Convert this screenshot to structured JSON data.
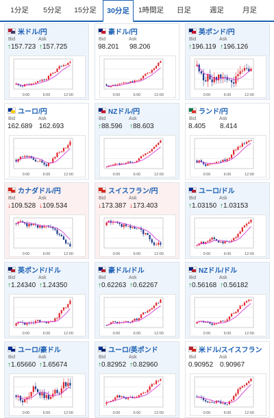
{
  "tabs": [
    "1分足",
    "5分足",
    "15分足",
    "30分足",
    "1時間足",
    "日足",
    "週足",
    "月足"
  ],
  "active_tab": 3,
  "cards": [
    {
      "pair": "米ドル/円",
      "state": "up",
      "bid": "157.723",
      "ask": "157.725",
      "bid_dir": "up",
      "ask_dir": "up",
      "flag": [
        "#b22234",
        "#3c3b6e"
      ]
    },
    {
      "pair": "豪ドル/円",
      "state": "neutral",
      "bid": "98.201",
      "ask": "98.206",
      "bid_dir": "",
      "ask_dir": "",
      "flag": [
        "#00247d",
        "#cf142b"
      ]
    },
    {
      "pair": "英ポンド/円",
      "state": "up",
      "bid": "196.119",
      "ask": "196.126",
      "bid_dir": "up",
      "ask_dir": "up",
      "flag": [
        "#012169",
        "#c8102e"
      ]
    },
    {
      "pair": "ユーロ/円",
      "state": "neutral",
      "bid": "162.689",
      "ask": "162.693",
      "bid_dir": "",
      "ask_dir": "",
      "flag": [
        "#003399",
        "#ffcc00"
      ]
    },
    {
      "pair": "NZドル/円",
      "state": "up",
      "bid": "88.596",
      "ask": "88.603",
      "bid_dir": "up",
      "ask_dir": "up",
      "flag": [
        "#00247d",
        "#cc142b"
      ]
    },
    {
      "pair": "ランド/円",
      "state": "neutral",
      "bid": "8.405",
      "ask": "8.414",
      "bid_dir": "",
      "ask_dir": "",
      "flag": [
        "#007a4d",
        "#de3831"
      ]
    },
    {
      "pair": "カナダドル/円",
      "state": "down",
      "bid": "109.528",
      "ask": "109.534",
      "bid_dir": "down",
      "ask_dir": "down",
      "flag": [
        "#d52b1e",
        "#d52b1e"
      ]
    },
    {
      "pair": "スイスフラン/円",
      "state": "down",
      "bid": "173.387",
      "ask": "173.403",
      "bid_dir": "down",
      "ask_dir": "down",
      "flag": [
        "#d52b1e",
        "#d52b1e"
      ]
    },
    {
      "pair": "ユーロ/ドル",
      "state": "up",
      "bid": "1.03150",
      "ask": "1.03153",
      "bid_dir": "up",
      "ask_dir": "up",
      "flag": [
        "#003399",
        "#b22234"
      ]
    },
    {
      "pair": "英ポンド/ドル",
      "state": "up",
      "bid": "1.24340",
      "ask": "1.24350",
      "bid_dir": "up",
      "ask_dir": "up",
      "flag": [
        "#012169",
        "#b22234"
      ]
    },
    {
      "pair": "豪ドル/ドル",
      "state": "up",
      "bid": "0.62263",
      "ask": "0.62267",
      "bid_dir": "up",
      "ask_dir": "up",
      "flag": [
        "#00247d",
        "#b22234"
      ]
    },
    {
      "pair": "NZドル/ドル",
      "state": "up",
      "bid": "0.56168",
      "ask": "0.56182",
      "bid_dir": "up",
      "ask_dir": "up",
      "flag": [
        "#00247d",
        "#b22234"
      ]
    },
    {
      "pair": "ユーロ/豪ドル",
      "state": "up",
      "bid": "1.65660",
      "ask": "1.65674",
      "bid_dir": "up",
      "ask_dir": "up",
      "flag": [
        "#003399",
        "#00247d"
      ]
    },
    {
      "pair": "ユーロ/英ポンド",
      "state": "up",
      "bid": "0.82952",
      "ask": "0.82960",
      "bid_dir": "up",
      "ask_dir": "up",
      "flag": [
        "#003399",
        "#012169"
      ]
    },
    {
      "pair": "米ドル/スイスフラン",
      "state": "neutral",
      "bid": "0.90952",
      "ask": "0.90967",
      "bid_dir": "",
      "ask_dir": "",
      "flag": [
        "#b22234",
        "#d52b1e"
      ]
    }
  ],
  "labels": {
    "bid": "Bid",
    "ask": "Ask"
  },
  "x_ticks": [
    "0:00",
    "6:00",
    "12:00"
  ],
  "arrows": {
    "up": "↑",
    "down": "↓"
  },
  "chart_data": {
    "type": "candlestick-thumbnails",
    "series_count": 15,
    "candle_color_up": "#e0242b",
    "candle_color_down": "#1f3a8a",
    "ma_color": "#d23bd6"
  }
}
